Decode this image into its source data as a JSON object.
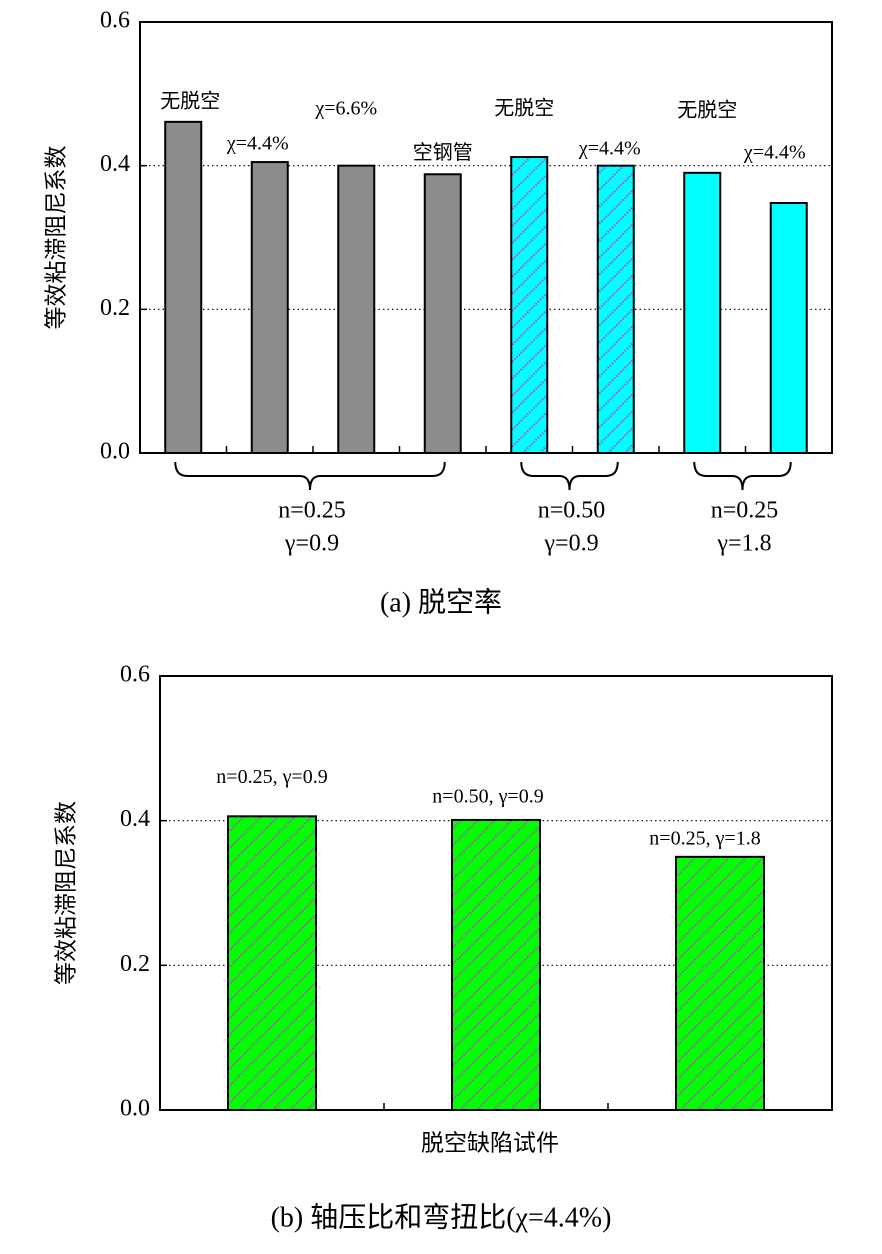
{
  "chart_data": [
    {
      "type": "bar",
      "ylabel": "等效粘滞阻尼系数",
      "caption": "(a) 脱空率",
      "values": [
        0.461,
        0.405,
        0.4,
        0.388,
        0.412,
        0.4,
        0.39,
        0.348
      ],
      "annotations": [
        "无脱空",
        "χ=4.4%",
        "χ=6.6%",
        "空钢管",
        "无脱空",
        "χ=4.4%",
        "无脱空",
        "χ=4.4%"
      ],
      "colors": [
        "#8c8c8c",
        "#8c8c8c",
        "#8c8c8c",
        "#8c8c8c",
        "#00ffff",
        "#00ffff",
        "#00ffff",
        "#00ffff"
      ],
      "hatch": [
        false,
        false,
        false,
        false,
        true,
        true,
        false,
        false
      ],
      "hatch_color": "#c040d0",
      "groups": [
        [
          "n=0.25",
          "γ=0.9"
        ],
        [
          "n=0.50",
          "γ=0.9"
        ],
        [
          "n=0.25",
          "γ=1.8"
        ]
      ],
      "ylim": [
        0,
        0.6
      ],
      "yticks": [
        {
          "value": 0,
          "label": "0.0"
        },
        0.2,
        0.4,
        0.6
      ],
      "grid": true
    },
    {
      "type": "bar",
      "ylabel": "等效粘滞阻尼系数",
      "xlabel": "脱空缺陷试件",
      "caption": "(b) 轴压比和弯扭比(χ=4.4%)",
      "values": [
        0.406,
        0.401,
        0.35
      ],
      "annotations": [
        "n=0.25, γ=0.9",
        "n=0.50, γ=0.9",
        "n=0.25,  γ=1.8"
      ],
      "colors": [
        "#00ff00",
        "#00ff00",
        "#00ff00"
      ],
      "hatch": [
        true,
        true,
        true
      ],
      "hatch_color": "#c040d0",
      "ylim": [
        0,
        0.6
      ],
      "yticks": [
        {
          "value": 0,
          "label": "0.0"
        },
        0.2,
        0.4,
        0.6
      ],
      "grid": true
    }
  ]
}
